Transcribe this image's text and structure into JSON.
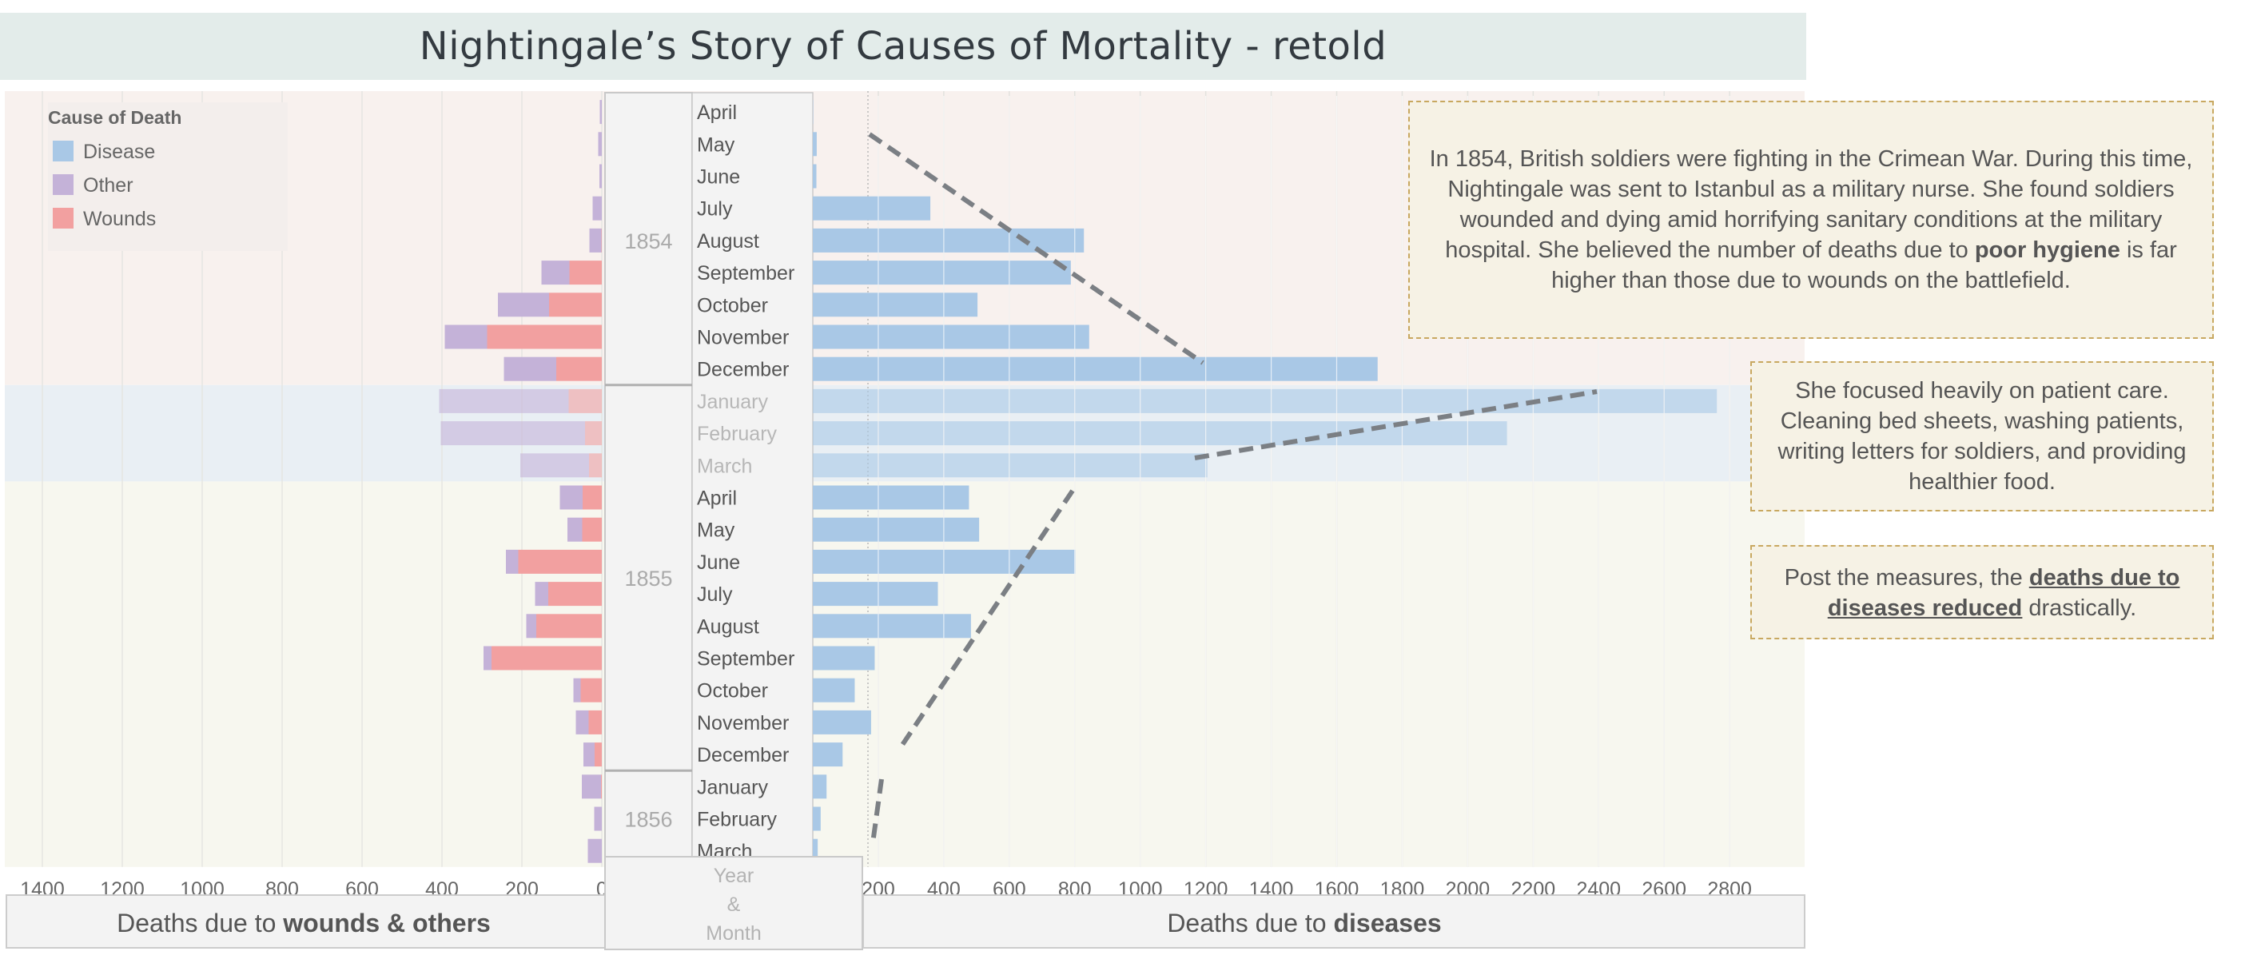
{
  "title": "Nightingale’s Story of Causes of Mortality - retold",
  "legend": {
    "title": "Cause of Death",
    "items": [
      {
        "label": "Disease",
        "color": "#a9c8e6"
      },
      {
        "label": "Other",
        "color": "#c4b2d8"
      },
      {
        "label": "Wounds",
        "color": "#f2a0a0"
      }
    ]
  },
  "axis": {
    "left_label_prefix": "Deaths due to ",
    "left_label_bold": "wounds & others",
    "right_label_prefix": "Deaths due to ",
    "right_label_bold": "diseases",
    "header_lines": [
      "Year",
      "&",
      "Month"
    ]
  },
  "annotations": {
    "a1": {
      "text_1": "In 1854, British soldiers were fighting in the Crimean War. During this time, Nightingale was sent to Istanbul as a military nurse. She found soldiers wounded and dying amid horrifying sanitary conditions at the military hospital. She believed the number of deaths due to ",
      "bold": "poor hygiene",
      "text_2": " is far higher than those due to wounds on the battlefield."
    },
    "a2": {
      "text": "She focused heavily on patient care. Cleaning bed sheets, washing patients, writing letters for soldiers, and providing healthier food."
    },
    "a3": {
      "text_1": "Post the measures, the ",
      "bold": "deaths due to diseases reduced",
      "text_2": " drastically."
    }
  },
  "chart_data": {
    "type": "bar",
    "title": "Nightingale’s Story of Causes of Mortality - retold",
    "orientation": "horizontal-diverging",
    "years": [
      {
        "label": "1854",
        "months": [
          "April",
          "May",
          "June",
          "July",
          "August",
          "September",
          "October",
          "November",
          "December"
        ]
      },
      {
        "label": "1855",
        "months": [
          "January",
          "February",
          "March",
          "April",
          "May",
          "June",
          "July",
          "August",
          "September",
          "October",
          "November",
          "December"
        ]
      },
      {
        "label": "1856",
        "months": [
          "January",
          "February",
          "March"
        ]
      }
    ],
    "highlighted_months": [
      "1855 January",
      "1855 February",
      "1855 March"
    ],
    "series": [
      {
        "name": "Disease",
        "side": "right",
        "values": [
          1,
          12,
          11,
          359,
          828,
          788,
          503,
          844,
          1725,
          2761,
          2120,
          1205,
          477,
          508,
          802,
          382,
          483,
          189,
          128,
          178,
          91,
          42,
          24,
          15
        ]
      },
      {
        "name": "Wounds",
        "side": "left",
        "values": [
          0,
          0,
          0,
          0,
          1,
          81,
          132,
          287,
          114,
          83,
          42,
          32,
          48,
          49,
          209,
          134,
          164,
          276,
          53,
          33,
          18,
          2,
          0,
          0
        ]
      },
      {
        "name": "Other",
        "side": "left",
        "values": [
          5,
          9,
          6,
          23,
          30,
          70,
          128,
          106,
          131,
          324,
          361,
          172,
          57,
          37,
          31,
          33,
          25,
          20,
          18,
          32,
          28,
          48,
          19,
          35
        ]
      }
    ],
    "xlabel_left": "Deaths due to wounds & others",
    "xlabel_right": "Deaths due to diseases",
    "ylabel": "Year & Month",
    "left_ticks": [
      1400,
      1200,
      1000,
      800,
      600,
      400,
      200,
      0
    ],
    "right_ticks": [
      200,
      400,
      600,
      800,
      1000,
      1200,
      1400,
      1600,
      1800,
      2000,
      2200,
      2400,
      2600,
      2800
    ],
    "xlim_left": [
      0,
      1470
    ],
    "xlim_right": [
      0,
      2900
    ]
  }
}
